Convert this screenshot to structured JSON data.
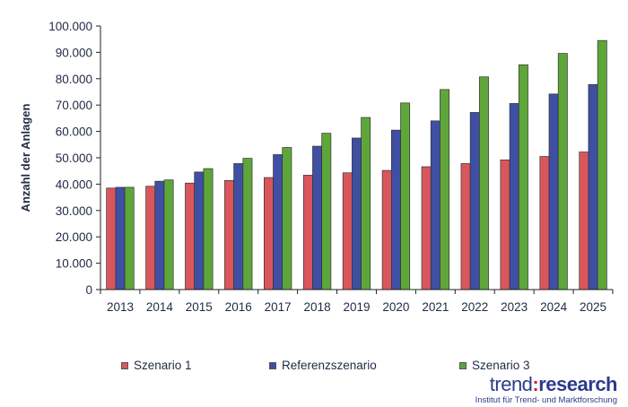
{
  "chart_data": {
    "type": "bar",
    "title": "",
    "xlabel": "",
    "ylabel": "Anzahl der Anlagen",
    "ylim": [
      0,
      100000
    ],
    "yticks": [
      0,
      10000,
      20000,
      30000,
      40000,
      50000,
      60000,
      70000,
      80000,
      90000,
      100000
    ],
    "ytick_labels": [
      "0",
      "10.000",
      "20.000",
      "30.000",
      "40.000",
      "50.000",
      "60.000",
      "70.000",
      "80.000",
      "90.000",
      "100.000"
    ],
    "grid": false,
    "legend_position": "bottom",
    "categories": [
      "2013",
      "2014",
      "2015",
      "2016",
      "2017",
      "2018",
      "2019",
      "2020",
      "2021",
      "2022",
      "2023",
      "2024",
      "2025"
    ],
    "series": [
      {
        "name": "Szenario 1",
        "color": "#d9575c",
        "values": [
          38500,
          39200,
          40400,
          41400,
          42500,
          43400,
          44300,
          45200,
          46600,
          47800,
          49200,
          50500,
          52200
        ]
      },
      {
        "name": "Referenzszenario",
        "color": "#3f4fa3",
        "values": [
          38800,
          41100,
          44600,
          47800,
          51200,
          54400,
          57500,
          60500,
          64000,
          67200,
          70600,
          74200,
          77800
        ]
      },
      {
        "name": "Szenario 3",
        "color": "#5ea63a",
        "values": [
          38800,
          41600,
          45900,
          49800,
          53900,
          59300,
          65300,
          70800,
          75900,
          80700,
          85300,
          89600,
          94500
        ]
      }
    ]
  },
  "logo": {
    "trend": "trend",
    "colon": ":",
    "research": "research",
    "subtitle": "Institut für Trend- und Marktforschung"
  }
}
